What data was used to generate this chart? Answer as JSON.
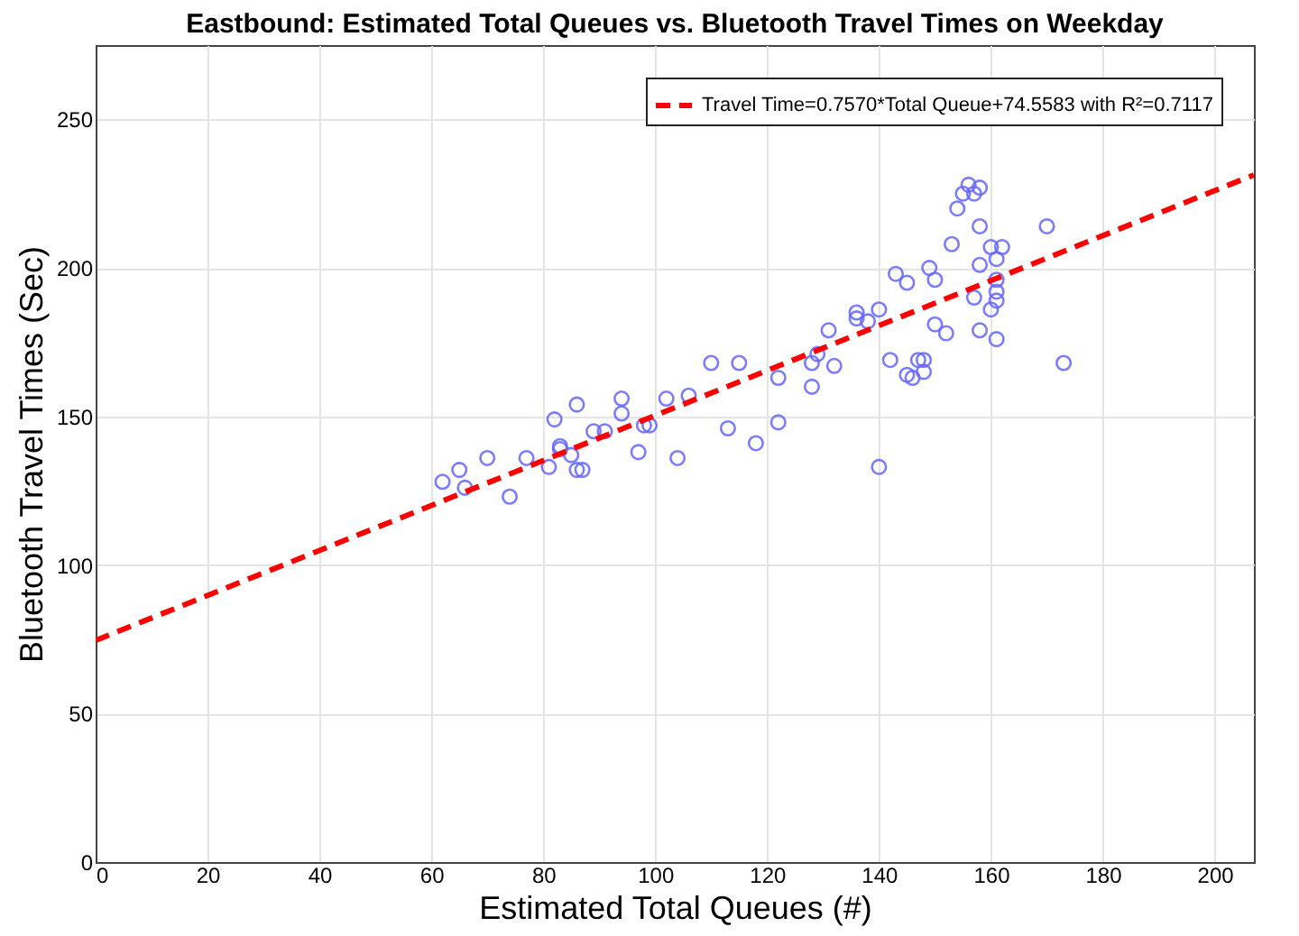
{
  "chart_data": {
    "type": "scatter",
    "title": "Eastbound: Estimated Total Queues vs. Bluetooth Travel Times on Weekday",
    "xlabel": "Estimated Total Queues (#)",
    "ylabel": "Bluetooth Travel Times (Sec)",
    "xlim": [
      0,
      207
    ],
    "xticks": [
      0,
      20,
      40,
      60,
      80,
      100,
      120,
      140,
      160,
      180,
      200
    ],
    "ylim": [
      0,
      275
    ],
    "yticks": [
      0,
      50,
      100,
      150,
      200,
      250
    ],
    "grid": true,
    "legend": "top right",
    "series": [
      {
        "color": "#6666ff",
        "marker": "circle",
        "x": [
          62,
          65,
          66,
          70,
          74,
          77,
          81,
          82,
          83,
          83,
          85,
          86,
          87,
          86,
          89,
          91,
          94,
          94,
          97,
          98,
          99,
          102,
          104,
          106,
          110,
          113,
          115,
          118,
          122,
          122,
          128,
          128,
          129,
          131,
          132,
          136,
          136,
          138,
          140,
          140,
          142,
          143,
          145,
          145,
          146,
          147,
          148,
          148,
          149,
          150,
          150,
          152,
          153,
          154,
          155,
          156,
          157,
          158,
          158,
          157,
          158,
          158,
          160,
          160,
          161,
          161,
          161,
          161,
          161,
          162,
          170,
          173
        ],
        "values": [
          128,
          132,
          126,
          136,
          123,
          136,
          133,
          149,
          140,
          139,
          137,
          132,
          132,
          154,
          145,
          145,
          156,
          151,
          138,
          147,
          147,
          156,
          136,
          157,
          168,
          146,
          168,
          141,
          163,
          148,
          168,
          160,
          171,
          179,
          167,
          185,
          183,
          182,
          186,
          133,
          169,
          198,
          195,
          164,
          163,
          169,
          165,
          169,
          200,
          196,
          181,
          178,
          208,
          220,
          225,
          228,
          225,
          227,
          214,
          190,
          201,
          179,
          207,
          186,
          203,
          196,
          192,
          189,
          176,
          207,
          214,
          168
        ]
      },
      {
        "type": "line",
        "name": "Travel Time=0.7570*Total Queue+74.5583 with R²=0.7117",
        "color": "#ff0000",
        "line_style": "dashed",
        "x": [
          0,
          207
        ],
        "values": [
          74.6,
          231.3
        ]
      }
    ]
  }
}
